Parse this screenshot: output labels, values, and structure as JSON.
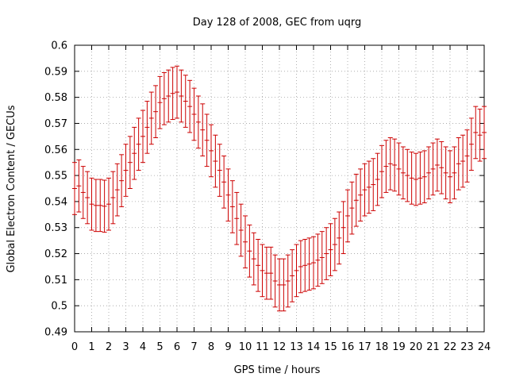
{
  "chart_data": {
    "type": "errorbar",
    "title": "Day 128 of 2008, GEC from uqrg",
    "xlabel": "GPS time / hours",
    "ylabel": "Global Electron Content / GECUs",
    "xlim": [
      0,
      24
    ],
    "ylim": [
      0.49,
      0.6
    ],
    "x_ticks": [
      "0",
      "1",
      "2",
      "3",
      "4",
      "5",
      "6",
      "7",
      "8",
      "9",
      "10",
      "11",
      "12",
      "13",
      "14",
      "15",
      "16",
      "17",
      "18",
      "19",
      "20",
      "21",
      "22",
      "23",
      "24"
    ],
    "y_ticks": [
      "0.49",
      "0.5",
      "0.51",
      "0.52",
      "0.53",
      "0.54",
      "0.55",
      "0.56",
      "0.57",
      "0.58",
      "0.59",
      "0.6"
    ],
    "grid": true,
    "series_color": "#cc0000",
    "error": 0.01,
    "series": [
      {
        "name": "GEC",
        "x": [
          0,
          0.25,
          0.5,
          0.75,
          1,
          1.25,
          1.5,
          1.75,
          2,
          2.25,
          2.5,
          2.75,
          3,
          3.25,
          3.5,
          3.75,
          4,
          4.25,
          4.5,
          4.75,
          5,
          5.25,
          5.5,
          5.75,
          6,
          6.25,
          6.5,
          6.75,
          7,
          7.25,
          7.5,
          7.75,
          8,
          8.25,
          8.5,
          8.75,
          9,
          9.25,
          9.5,
          9.75,
          10,
          10.25,
          10.5,
          10.75,
          11,
          11.25,
          11.5,
          11.75,
          12,
          12.25,
          12.5,
          12.75,
          13,
          13.25,
          13.5,
          13.75,
          14,
          14.25,
          14.5,
          14.75,
          15,
          15.25,
          15.5,
          15.75,
          16,
          16.25,
          16.5,
          16.75,
          17,
          17.25,
          17.5,
          17.75,
          18,
          18.25,
          18.5,
          18.75,
          19,
          19.25,
          19.5,
          19.75,
          20,
          20.25,
          20.5,
          20.75,
          21,
          21.25,
          21.5,
          21.75,
          22,
          22.25,
          22.5,
          22.75,
          23,
          23.25,
          23.5,
          23.75,
          24
        ],
        "y": [
          0.545,
          0.546,
          0.5435,
          0.5415,
          0.539,
          0.5385,
          0.5385,
          0.5382,
          0.539,
          0.5415,
          0.5445,
          0.548,
          0.552,
          0.555,
          0.5585,
          0.562,
          0.565,
          0.5685,
          0.572,
          0.5745,
          0.578,
          0.5795,
          0.5805,
          0.5815,
          0.582,
          0.5805,
          0.5785,
          0.5765,
          0.5735,
          0.5705,
          0.5675,
          0.5635,
          0.5595,
          0.5555,
          0.552,
          0.5475,
          0.5425,
          0.538,
          0.5335,
          0.529,
          0.5245,
          0.521,
          0.518,
          0.5155,
          0.5135,
          0.5125,
          0.5125,
          0.5095,
          0.508,
          0.508,
          0.5095,
          0.5115,
          0.5135,
          0.515,
          0.5155,
          0.516,
          0.5165,
          0.5175,
          0.5185,
          0.52,
          0.5215,
          0.5235,
          0.526,
          0.53,
          0.5345,
          0.5375,
          0.5405,
          0.5425,
          0.5445,
          0.5455,
          0.5465,
          0.5485,
          0.5515,
          0.5535,
          0.5545,
          0.554,
          0.5525,
          0.551,
          0.55,
          0.549,
          0.5485,
          0.549,
          0.5495,
          0.551,
          0.5525,
          0.554,
          0.553,
          0.551,
          0.5495,
          0.551,
          0.5545,
          0.5555,
          0.5575,
          0.562,
          0.5665,
          0.5655,
          0.5665
        ]
      }
    ]
  }
}
